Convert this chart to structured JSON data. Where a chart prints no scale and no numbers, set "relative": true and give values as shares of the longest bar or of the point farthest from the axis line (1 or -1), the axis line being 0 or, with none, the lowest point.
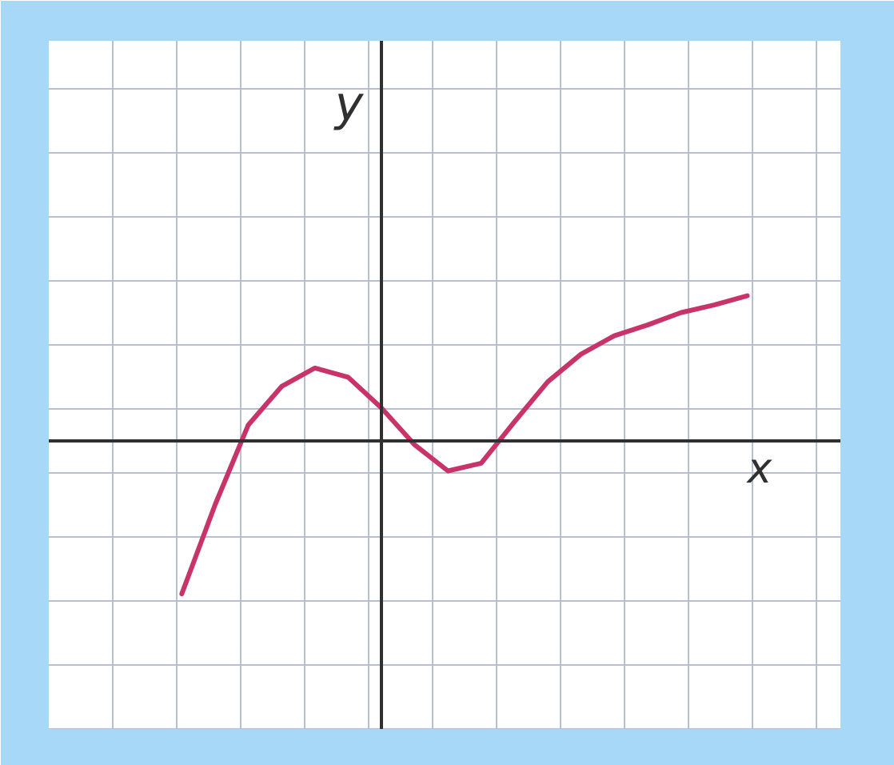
{
  "chart_data": {
    "type": "line",
    "relative": true,
    "xlabel": "x",
    "ylabel": "y",
    "grid": true,
    "categories": [
      null,
      null,
      null,
      null,
      null,
      null,
      null,
      null,
      null,
      null,
      null,
      null,
      null,
      null,
      null,
      null,
      null,
      null
    ],
    "series": [
      {
        "color": "#c8336a",
        "values": [
          -1,
          -0.42,
          0.1,
          0.35,
          0.47,
          0.41,
          0.21,
          -0.03,
          -0.2,
          -0.15,
          0.12,
          0.38,
          0.56,
          0.68,
          0.75,
          0.83,
          0.88,
          0.94
        ]
      }
    ]
  }
}
